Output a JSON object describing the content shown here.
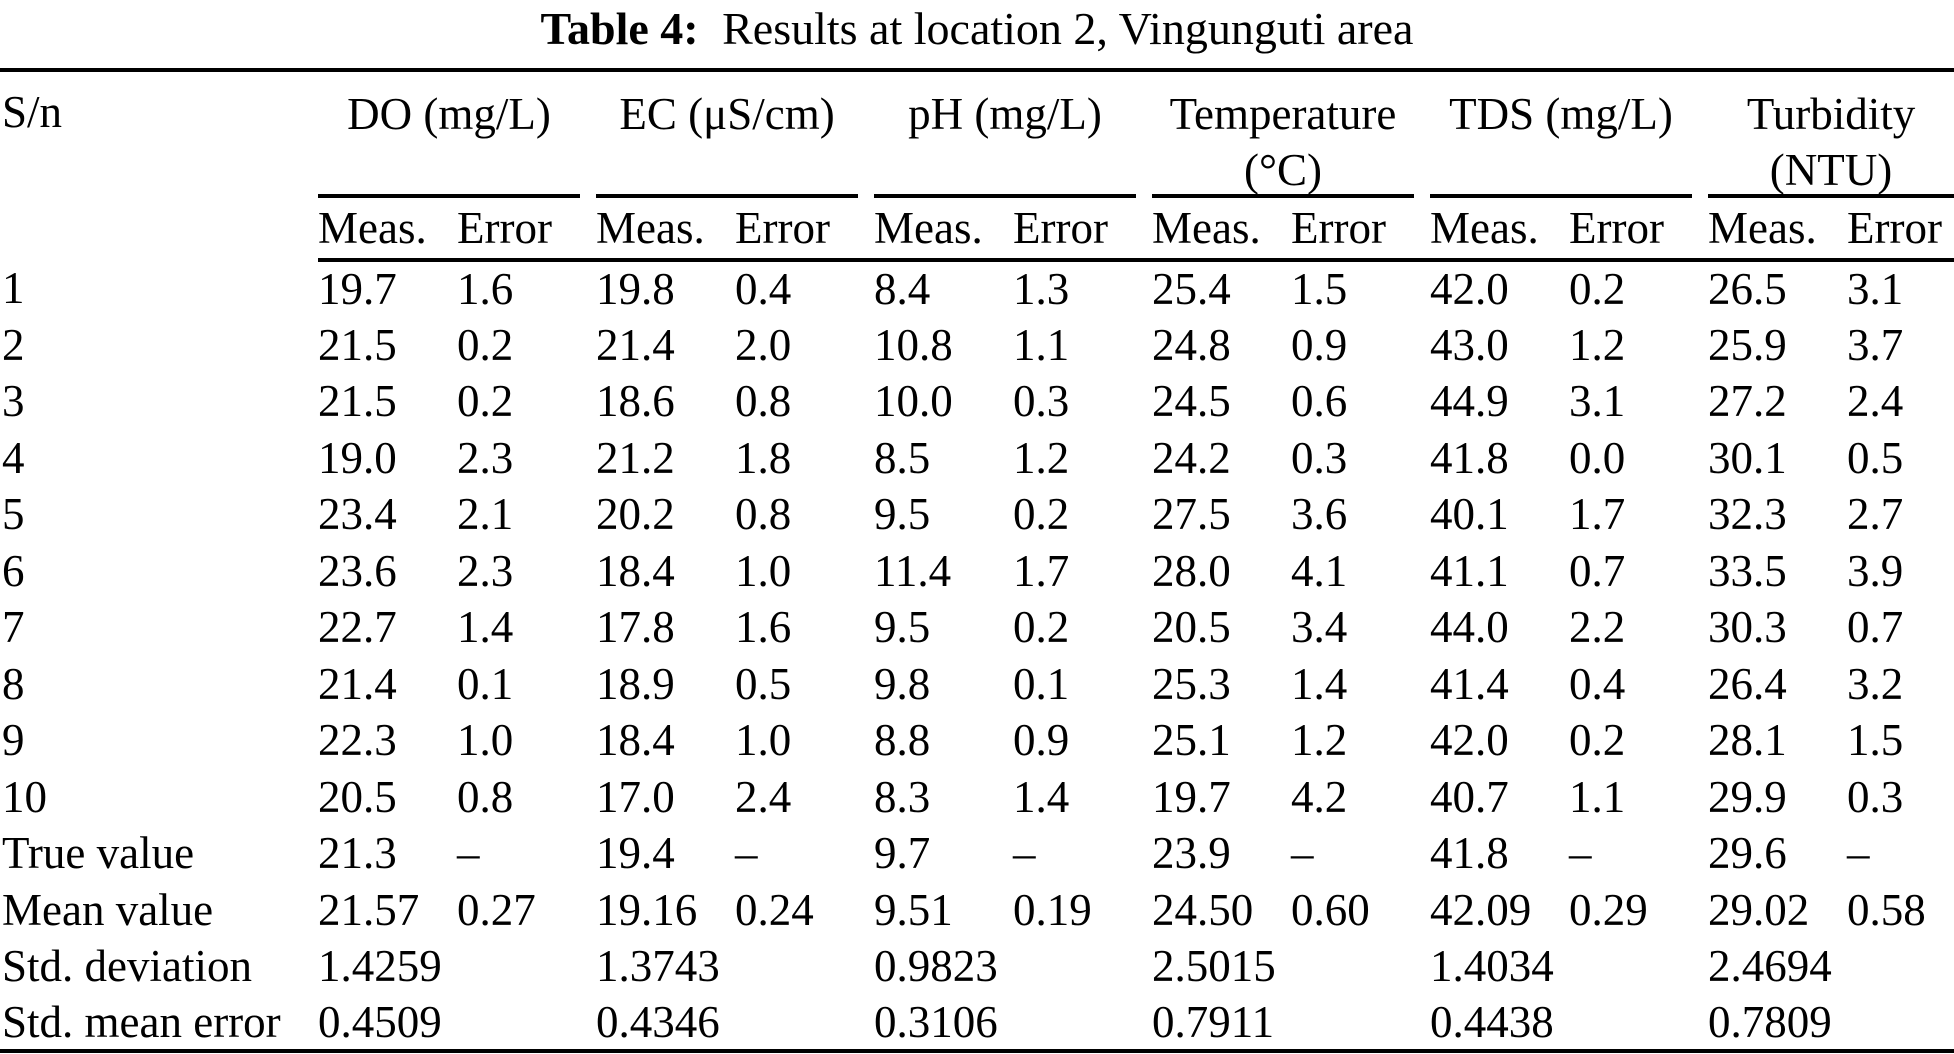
{
  "colors": {
    "text": "#000000",
    "background": "#ffffff",
    "rule": "#000000"
  },
  "title": {
    "label": "Table 4:",
    "text": "Results at location 2, Vingunguti area"
  },
  "table": {
    "corner_label": "S/n",
    "groups": [
      {
        "line1": "DO (mg/L)",
        "line2": ""
      },
      {
        "line1": "EC (μS/cm)",
        "line2": ""
      },
      {
        "line1": "pH (mg/L)",
        "line2": ""
      },
      {
        "line1": "Temperature",
        "line2": "(°C)"
      },
      {
        "line1": "TDS (mg/L)",
        "line2": ""
      },
      {
        "line1": "Turbidity",
        "line2": "(NTU)"
      }
    ],
    "subheaders": [
      "Meas.",
      "Error"
    ],
    "rows": [
      {
        "label": "1",
        "cells": [
          "19.7",
          "1.6",
          "19.8",
          "0.4",
          "8.4",
          "1.3",
          "25.4",
          "1.5",
          "42.0",
          "0.2",
          "26.5",
          "3.1"
        ]
      },
      {
        "label": "2",
        "cells": [
          "21.5",
          "0.2",
          "21.4",
          "2.0",
          "10.8",
          "1.1",
          "24.8",
          "0.9",
          "43.0",
          "1.2",
          "25.9",
          "3.7"
        ]
      },
      {
        "label": "3",
        "cells": [
          "21.5",
          "0.2",
          "18.6",
          "0.8",
          "10.0",
          "0.3",
          "24.5",
          "0.6",
          "44.9",
          "3.1",
          "27.2",
          "2.4"
        ]
      },
      {
        "label": "4",
        "cells": [
          "19.0",
          "2.3",
          "21.2",
          "1.8",
          "8.5",
          "1.2",
          "24.2",
          "0.3",
          "41.8",
          "0.0",
          "30.1",
          "0.5"
        ]
      },
      {
        "label": "5",
        "cells": [
          "23.4",
          "2.1",
          "20.2",
          "0.8",
          "9.5",
          "0.2",
          "27.5",
          "3.6",
          "40.1",
          "1.7",
          "32.3",
          "2.7"
        ]
      },
      {
        "label": "6",
        "cells": [
          "23.6",
          "2.3",
          "18.4",
          "1.0",
          "11.4",
          "1.7",
          "28.0",
          "4.1",
          "41.1",
          "0.7",
          "33.5",
          "3.9"
        ]
      },
      {
        "label": "7",
        "cells": [
          "22.7",
          "1.4",
          "17.8",
          "1.6",
          "9.5",
          "0.2",
          "20.5",
          "3.4",
          "44.0",
          "2.2",
          "30.3",
          "0.7"
        ]
      },
      {
        "label": "8",
        "cells": [
          "21.4",
          "0.1",
          "18.9",
          "0.5",
          "9.8",
          "0.1",
          "25.3",
          "1.4",
          "41.4",
          "0.4",
          "26.4",
          "3.2"
        ]
      },
      {
        "label": "9",
        "cells": [
          "22.3",
          "1.0",
          "18.4",
          "1.0",
          "8.8",
          "0.9",
          "25.1",
          "1.2",
          "42.0",
          "0.2",
          "28.1",
          "1.5"
        ]
      },
      {
        "label": "10",
        "cells": [
          "20.5",
          "0.8",
          "17.0",
          "2.4",
          "8.3",
          "1.4",
          "19.7",
          "4.2",
          "40.7",
          "1.1",
          "29.9",
          "0.3"
        ]
      },
      {
        "label": "True value",
        "cells": [
          "21.3",
          "–",
          "19.4",
          "–",
          "9.7",
          "–",
          "23.9",
          "–",
          "41.8",
          "–",
          "29.6",
          "–"
        ]
      },
      {
        "label": "Mean value",
        "cells": [
          "21.57",
          "0.27",
          "19.16",
          "0.24",
          "9.51",
          "0.19",
          "24.50",
          "0.60",
          "42.09",
          "0.29",
          "29.02",
          "0.58"
        ]
      },
      {
        "label": "Std. deviation",
        "cells": [
          "1.4259",
          "",
          "1.3743",
          "",
          "0.9823",
          "",
          "2.5015",
          "",
          "1.4034",
          "",
          "2.4694",
          ""
        ]
      },
      {
        "label": "Std. mean error",
        "cells": [
          "0.4509",
          "",
          "0.4346",
          "",
          "0.3106",
          "",
          "0.7911",
          "",
          "0.4438",
          "",
          "0.7809",
          ""
        ]
      }
    ]
  }
}
